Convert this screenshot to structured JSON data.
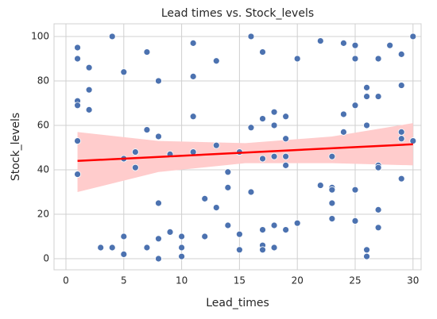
{
  "chart_data": {
    "type": "scatter",
    "title": "Lead times vs. Stock_levels",
    "xlabel": "Lead_times",
    "ylabel": "Stock_levels",
    "x": [
      1,
      1,
      1,
      1,
      1,
      1,
      2,
      2,
      2,
      3,
      4,
      4,
      5,
      5,
      5,
      5,
      6,
      6,
      7,
      7,
      7,
      8,
      8,
      8,
      8,
      8,
      9,
      9,
      10,
      10,
      10,
      11,
      11,
      11,
      11,
      12,
      12,
      13,
      13,
      13,
      14,
      14,
      14,
      15,
      15,
      15,
      16,
      16,
      16,
      17,
      17,
      17,
      17,
      17,
      17,
      18,
      18,
      18,
      18,
      18,
      19,
      19,
      19,
      19,
      19,
      20,
      20,
      22,
      22,
      23,
      23,
      23,
      23,
      23,
      24,
      24,
      24,
      25,
      25,
      25,
      25,
      25,
      26,
      26,
      26,
      26,
      26,
      27,
      27,
      27,
      27,
      27,
      27,
      28,
      29,
      29,
      29,
      29,
      29,
      30,
      30
    ],
    "y": [
      95,
      90,
      71,
      69,
      53,
      38,
      86,
      76,
      67,
      5,
      100,
      5,
      84,
      45,
      10,
      2,
      48,
      41,
      93,
      58,
      5,
      80,
      55,
      25,
      9,
      0,
      47,
      12,
      10,
      5,
      1,
      97,
      82,
      64,
      48,
      27,
      10,
      89,
      51,
      23,
      39,
      32,
      15,
      48,
      11,
      4,
      100,
      59,
      30,
      93,
      63,
      45,
      13,
      6,
      4,
      66,
      60,
      46,
      15,
      5,
      64,
      54,
      46,
      42,
      13,
      90,
      16,
      98,
      33,
      46,
      32,
      31,
      25,
      18,
      97,
      65,
      57,
      96,
      90,
      69,
      31,
      17,
      77,
      73,
      60,
      4,
      1,
      90,
      73,
      42,
      41,
      22,
      14,
      96,
      92,
      78,
      57,
      54,
      36,
      100,
      53
    ],
    "color": "#4c72b0",
    "regression": {
      "x": [
        1,
        30
      ],
      "y": [
        44,
        51.5
      ],
      "color": "#ff0000"
    },
    "ci": {
      "x": [
        1,
        8,
        15.5,
        23,
        30
      ],
      "lower": [
        30,
        39,
        43,
        43,
        42
      ],
      "upper": [
        57,
        53,
        52,
        55,
        61
      ],
      "color": "#ffcccc"
    },
    "xlim": [
      -1.03,
      30.7
    ],
    "ylim": [
      -5,
      105.7
    ],
    "xticks": [
      0,
      5,
      10,
      15,
      20,
      25,
      30
    ],
    "yticks": [
      0,
      20,
      40,
      60,
      80,
      100
    ],
    "grid": true
  }
}
